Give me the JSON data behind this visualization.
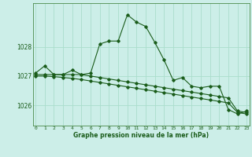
{
  "xlabel": "Graphe pression niveau de la mer (hPa)",
  "x_ticks": [
    0,
    1,
    2,
    3,
    4,
    5,
    6,
    7,
    8,
    9,
    10,
    11,
    12,
    13,
    14,
    15,
    16,
    17,
    18,
    19,
    20,
    21,
    22,
    23
  ],
  "background_color": "#cceee8",
  "grid_color": "#aaddcc",
  "line_color": "#1a5c1a",
  "ylim": [
    1025.3,
    1029.5
  ],
  "yticks": [
    1026,
    1027,
    1028
  ],
  "line1": [
    1027.1,
    1027.35,
    1027.05,
    1027.05,
    1027.2,
    1027.05,
    1027.1,
    1028.1,
    1028.2,
    1028.2,
    1029.1,
    1028.85,
    1028.7,
    1028.15,
    1027.55,
    1026.85,
    1026.95,
    1026.65,
    1026.6,
    1026.65,
    1026.65,
    1025.85,
    1025.7,
    1025.8
  ],
  "line2": [
    1027.05,
    1027.05,
    1027.05,
    1027.05,
    1027.05,
    1027.05,
    1027.0,
    1026.95,
    1026.9,
    1026.85,
    1026.8,
    1026.75,
    1026.7,
    1026.65,
    1026.6,
    1026.55,
    1026.5,
    1026.45,
    1026.4,
    1026.35,
    1026.3,
    1026.25,
    1025.8,
    1025.75
  ],
  "line3": [
    1027.0,
    1027.0,
    1026.98,
    1026.95,
    1026.92,
    1026.88,
    1026.83,
    1026.78,
    1026.73,
    1026.68,
    1026.63,
    1026.58,
    1026.53,
    1026.48,
    1026.43,
    1026.38,
    1026.33,
    1026.28,
    1026.23,
    1026.18,
    1026.13,
    1026.08,
    1025.75,
    1025.7
  ]
}
